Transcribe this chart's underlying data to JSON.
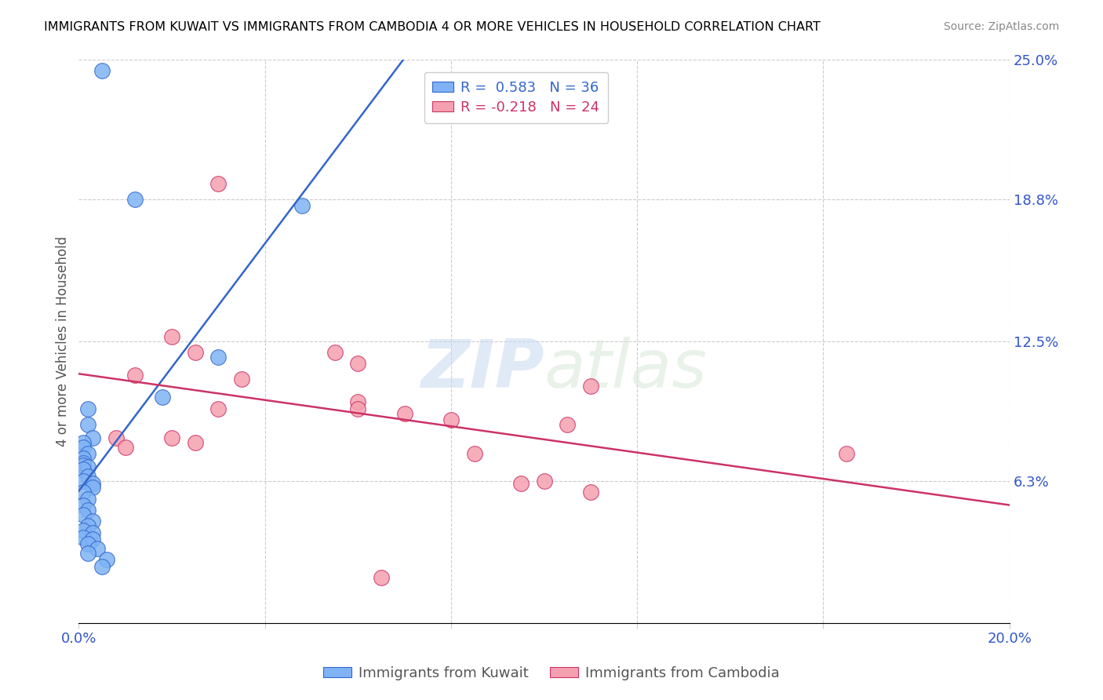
{
  "title": "IMMIGRANTS FROM KUWAIT VS IMMIGRANTS FROM CAMBODIA 4 OR MORE VEHICLES IN HOUSEHOLD CORRELATION CHART",
  "source": "Source: ZipAtlas.com",
  "ylabel": "4 or more Vehicles in Household",
  "x_min": 0.0,
  "x_max": 0.2,
  "y_min": 0.0,
  "y_max": 0.25,
  "x_ticks": [
    0.0,
    0.04,
    0.08,
    0.12,
    0.16,
    0.2
  ],
  "x_tick_labels": [
    "0.0%",
    "",
    "",
    "",
    "",
    "20.0%"
  ],
  "y_tick_labels_right": [
    "6.3%",
    "12.5%",
    "18.8%",
    "25.0%"
  ],
  "y_ticks_right": [
    0.063,
    0.125,
    0.188,
    0.25
  ],
  "kuwait_color": "#7fb3f5",
  "cambodia_color": "#f5a0b0",
  "kuwait_line_color": "#3366cc",
  "cambodia_line_color": "#cc3366",
  "legend_r_kuwait": "0.583",
  "legend_n_kuwait": "36",
  "legend_r_cambodia": "-0.218",
  "legend_n_cambodia": "24",
  "watermark_zip": "ZIP",
  "watermark_atlas": "atlas",
  "kuwait_points": [
    [
      0.005,
      0.245
    ],
    [
      0.012,
      0.188
    ],
    [
      0.048,
      0.185
    ],
    [
      0.03,
      0.118
    ],
    [
      0.018,
      0.1
    ],
    [
      0.002,
      0.095
    ],
    [
      0.002,
      0.088
    ],
    [
      0.003,
      0.082
    ],
    [
      0.001,
      0.08
    ],
    [
      0.001,
      0.078
    ],
    [
      0.002,
      0.075
    ],
    [
      0.001,
      0.073
    ],
    [
      0.001,
      0.071
    ],
    [
      0.001,
      0.07
    ],
    [
      0.002,
      0.069
    ],
    [
      0.001,
      0.068
    ],
    [
      0.002,
      0.065
    ],
    [
      0.001,
      0.063
    ],
    [
      0.003,
      0.062
    ],
    [
      0.003,
      0.06
    ],
    [
      0.001,
      0.058
    ],
    [
      0.002,
      0.055
    ],
    [
      0.001,
      0.052
    ],
    [
      0.002,
      0.05
    ],
    [
      0.001,
      0.048
    ],
    [
      0.003,
      0.045
    ],
    [
      0.002,
      0.043
    ],
    [
      0.001,
      0.041
    ],
    [
      0.003,
      0.04
    ],
    [
      0.001,
      0.038
    ],
    [
      0.003,
      0.037
    ],
    [
      0.002,
      0.035
    ],
    [
      0.004,
      0.033
    ],
    [
      0.002,
      0.031
    ],
    [
      0.006,
      0.028
    ],
    [
      0.005,
      0.025
    ]
  ],
  "cambodia_points": [
    [
      0.03,
      0.195
    ],
    [
      0.02,
      0.127
    ],
    [
      0.025,
      0.12
    ],
    [
      0.055,
      0.12
    ],
    [
      0.06,
      0.115
    ],
    [
      0.012,
      0.11
    ],
    [
      0.11,
      0.105
    ],
    [
      0.035,
      0.108
    ],
    [
      0.02,
      0.082
    ],
    [
      0.008,
      0.082
    ],
    [
      0.025,
      0.08
    ],
    [
      0.01,
      0.078
    ],
    [
      0.03,
      0.095
    ],
    [
      0.06,
      0.098
    ],
    [
      0.06,
      0.095
    ],
    [
      0.07,
      0.093
    ],
    [
      0.08,
      0.09
    ],
    [
      0.085,
      0.075
    ],
    [
      0.105,
      0.088
    ],
    [
      0.1,
      0.063
    ],
    [
      0.095,
      0.062
    ],
    [
      0.165,
      0.075
    ],
    [
      0.11,
      0.058
    ],
    [
      0.065,
      0.02
    ]
  ]
}
